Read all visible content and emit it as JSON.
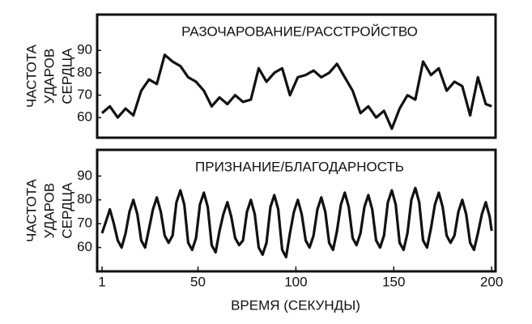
{
  "chart_data": [
    {
      "type": "line",
      "title": "РАЗОЧАРОВАНИЕ/РАССТРОЙСТВО",
      "ylabel": [
        "ЧАСТОТА",
        "УДАРОВ",
        "СЕРДЦА"
      ],
      "x": [
        1,
        5,
        9,
        13,
        17,
        21,
        25,
        29,
        33,
        37,
        41,
        45,
        49,
        53,
        57,
        61,
        65,
        69,
        73,
        77,
        81,
        85,
        89,
        93,
        97,
        101,
        105,
        109,
        113,
        117,
        121,
        125,
        129,
        133,
        137,
        141,
        145,
        149,
        153,
        157,
        161,
        165,
        169,
        173,
        177,
        181,
        185,
        189,
        193,
        197,
        200
      ],
      "series": [
        {
          "name": "РАЗОЧАРОВАНИЕ/РАССТРОЙСТВО",
          "color": "#111111",
          "values": [
            62,
            65,
            60,
            64,
            61,
            72,
            77,
            75,
            88,
            85,
            83,
            78,
            76,
            72,
            65,
            69,
            66,
            70,
            67,
            68,
            82,
            76,
            80,
            82,
            70,
            78,
            79,
            81,
            78,
            80,
            84,
            78,
            72,
            62,
            65,
            60,
            63,
            55,
            64,
            70,
            68,
            85,
            79,
            82,
            72,
            76,
            74,
            61,
            78,
            66,
            65
          ]
        }
      ],
      "xlim": [
        -1.5,
        202
      ],
      "ylim": [
        51,
        106
      ],
      "yticks": [
        60,
        70,
        80,
        90
      ]
    },
    {
      "type": "line",
      "title": "ПРИЗНАНИЕ/БЛАГОДАРНОСТЬ",
      "ylabel": [
        "ЧАСТОТА",
        "УДАРОВ",
        "СЕРДЦА"
      ],
      "xlabel": "ВРЕМЯ (СЕКУНДЫ)",
      "x": [
        1,
        3,
        5,
        7,
        9,
        11,
        13,
        15,
        17,
        19,
        21,
        23,
        25,
        27,
        29,
        31,
        33,
        35,
        37,
        39,
        41,
        43,
        45,
        47,
        49,
        51,
        53,
        55,
        57,
        59,
        61,
        63,
        65,
        67,
        69,
        71,
        73,
        75,
        77,
        79,
        81,
        83,
        85,
        87,
        89,
        91,
        93,
        95,
        97,
        99,
        101,
        103,
        105,
        107,
        109,
        111,
        113,
        115,
        117,
        119,
        121,
        123,
        125,
        127,
        129,
        131,
        133,
        135,
        137,
        139,
        141,
        143,
        145,
        147,
        149,
        151,
        153,
        155,
        157,
        159,
        161,
        163,
        165,
        167,
        169,
        171,
        173,
        175,
        177,
        179,
        181,
        183,
        185,
        187,
        189,
        191,
        193,
        195,
        197,
        199,
        200
      ],
      "series": [
        {
          "name": "ПРИЗНАНИЕ/БЛАГОДАРНОСТЬ",
          "color": "#111111",
          "values": [
            66,
            71,
            76,
            70,
            63,
            60,
            66,
            75,
            80,
            74,
            63,
            60,
            68,
            76,
            81,
            75,
            65,
            62,
            65,
            79,
            84,
            78,
            62,
            59,
            64,
            78,
            83,
            77,
            61,
            58,
            67,
            74,
            79,
            73,
            64,
            61,
            63,
            75,
            80,
            74,
            60,
            57,
            62,
            77,
            82,
            76,
            59,
            56,
            66,
            75,
            80,
            74,
            63,
            60,
            65,
            76,
            81,
            75,
            62,
            59,
            67,
            78,
            83,
            77,
            64,
            61,
            66,
            77,
            82,
            76,
            63,
            60,
            65,
            79,
            84,
            78,
            62,
            59,
            66,
            80,
            85,
            79,
            63,
            60,
            68,
            78,
            83,
            77,
            65,
            62,
            65,
            75,
            80,
            74,
            62,
            59,
            66,
            74,
            79,
            73,
            67
          ]
        }
      ],
      "xlim": [
        -1.5,
        202
      ],
      "ylim": [
        50,
        101
      ],
      "yticks": [
        60,
        70,
        80,
        90
      ],
      "xticks": [
        1,
        50,
        100,
        150,
        200
      ]
    }
  ]
}
